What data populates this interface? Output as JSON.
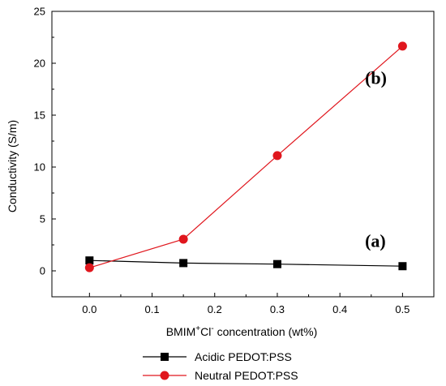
{
  "chart_data": {
    "type": "line",
    "x": [
      0.0,
      0.15,
      0.3,
      0.5
    ],
    "series": [
      {
        "name": "Acidic PEDOT:PSS",
        "values": [
          1.0,
          0.75,
          0.65,
          0.45
        ],
        "color": "#000000",
        "marker": "square"
      },
      {
        "name": "Neutral PEDOT:PSS",
        "values": [
          0.3,
          3.05,
          11.1,
          21.65
        ],
        "color": "#e0161d",
        "marker": "circle"
      }
    ],
    "xlabel_parts": {
      "pre": "BMIM",
      "sup1": "+",
      "mid": "Cl",
      "sup2": "-",
      "post": " concentration (wt%)"
    },
    "ylabel": "Conductivity (S/m)",
    "xlim": [
      -0.06,
      0.55
    ],
    "ylim": [
      -2.5,
      25
    ],
    "xticks": [
      0.0,
      0.1,
      0.2,
      0.3,
      0.4,
      0.5
    ],
    "yticks": [
      0,
      5,
      10,
      15,
      20,
      25
    ],
    "xtick_labels": [
      "0.0",
      "0.1",
      "0.2",
      "0.3",
      "0.4",
      "0.5"
    ],
    "ytick_labels": [
      "0",
      "5",
      "10",
      "15",
      "20",
      "25"
    ],
    "annotations": [
      {
        "text": "(b)",
        "x": 0.44,
        "y": 18.0
      },
      {
        "text": "(a)",
        "x": 0.44,
        "y": 2.3
      }
    ],
    "grid": false,
    "legend_position": "bottom"
  }
}
